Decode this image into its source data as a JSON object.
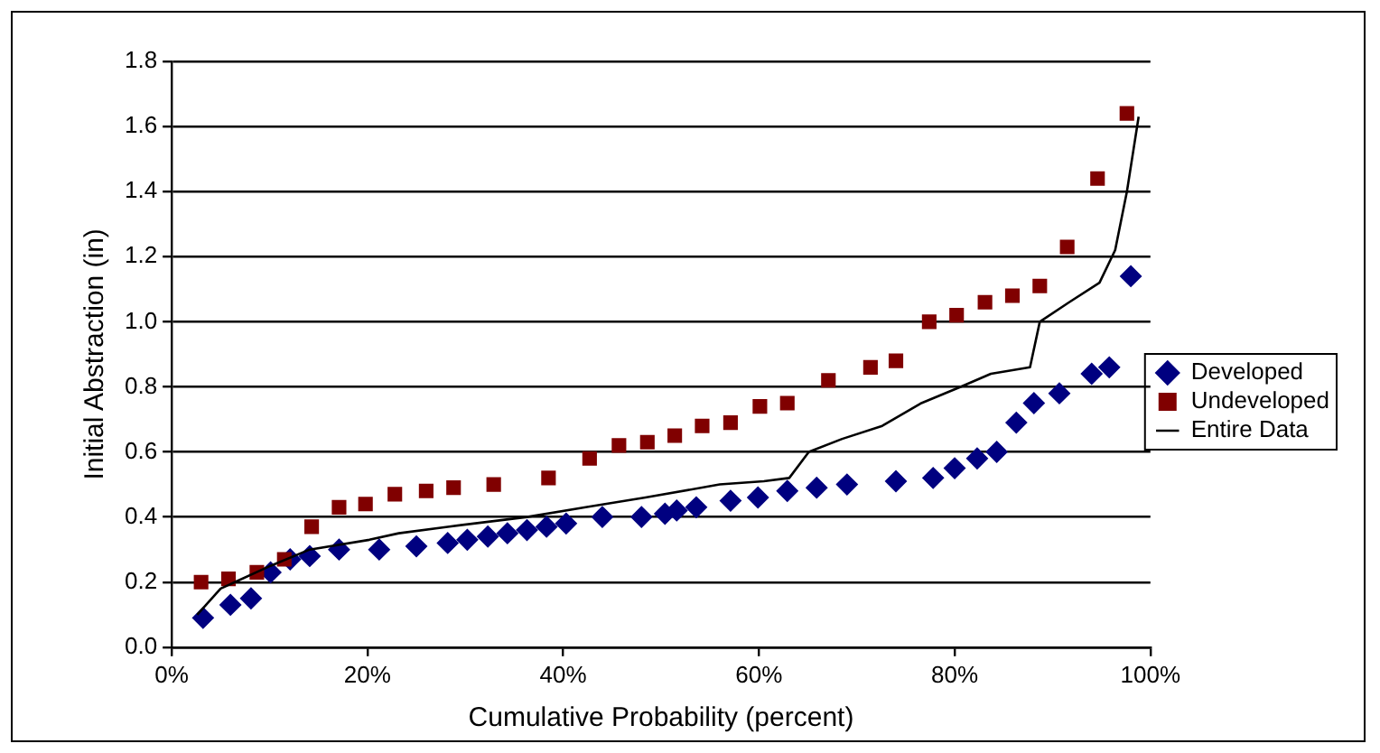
{
  "chart_data": {
    "type": "scatter",
    "xlabel": "Cumulative Probability (percent)",
    "ylabel": "Initial Abstraction (in)",
    "xlim": [
      0,
      100
    ],
    "xticks": [
      {
        "value": 0,
        "label": "0%"
      },
      {
        "value": 20,
        "label": "20%"
      },
      {
        "value": 40,
        "label": "40%"
      },
      {
        "value": 60,
        "label": "60%"
      },
      {
        "value": 80,
        "label": "80%"
      },
      {
        "value": 100,
        "label": "100%"
      }
    ],
    "ylim": [
      0,
      1.8
    ],
    "yticks": [
      {
        "value": 0,
        "label": "0.0"
      },
      {
        "value": 0.2,
        "label": "0.2"
      },
      {
        "value": 0.4,
        "label": "0.4"
      },
      {
        "value": 0.6,
        "label": "0.6"
      },
      {
        "value": 0.8,
        "label": "0.8"
      },
      {
        "value": 1,
        "label": "1.0"
      },
      {
        "value": 1.2,
        "label": "1.2"
      },
      {
        "value": 1.4,
        "label": "1.4"
      },
      {
        "value": 1.6,
        "label": "1.6"
      },
      {
        "value": 1.8,
        "label": "1.8"
      }
    ],
    "grid": "y",
    "legend": "right",
    "series": [
      {
        "name": "Developed",
        "type": "scatter",
        "marker": "diamond",
        "color": "#000080",
        "x": [
          3.2,
          6.0,
          8.1,
          10.1,
          12.1,
          14.1,
          17.1,
          21.2,
          25.0,
          28.2,
          30.2,
          32.3,
          34.3,
          36.3,
          38.3,
          40.3,
          44.0,
          48.0,
          50.4,
          51.6,
          53.6,
          57.1,
          59.9,
          62.9,
          65.9,
          69.0,
          74.0,
          77.8,
          80.0,
          82.3,
          84.3,
          86.3,
          88.1,
          90.7,
          94.0,
          95.8,
          98.0
        ],
        "values": [
          0.09,
          0.13,
          0.15,
          0.23,
          0.27,
          0.28,
          0.3,
          0.3,
          0.31,
          0.32,
          0.33,
          0.34,
          0.35,
          0.36,
          0.37,
          0.38,
          0.4,
          0.4,
          0.41,
          0.42,
          0.43,
          0.45,
          0.46,
          0.48,
          0.49,
          0.5,
          0.51,
          0.52,
          0.55,
          0.58,
          0.6,
          0.69,
          0.75,
          0.78,
          0.84,
          0.86,
          1.14
        ]
      },
      {
        "name": "Undeveloped",
        "type": "scatter",
        "marker": "square",
        "color": "#800000",
        "x": [
          3.0,
          5.8,
          8.7,
          11.5,
          14.3,
          17.1,
          19.8,
          22.8,
          26.0,
          28.8,
          32.9,
          38.5,
          42.7,
          45.7,
          48.6,
          51.4,
          54.2,
          57.1,
          60.1,
          62.9,
          67.1,
          71.4,
          74.0,
          77.4,
          80.2,
          83.1,
          85.9,
          88.7,
          91.5,
          94.6,
          97.6
        ],
        "values": [
          0.2,
          0.21,
          0.23,
          0.27,
          0.37,
          0.43,
          0.44,
          0.47,
          0.48,
          0.49,
          0.5,
          0.52,
          0.58,
          0.62,
          0.63,
          0.65,
          0.68,
          0.69,
          0.74,
          0.75,
          0.82,
          0.86,
          0.88,
          1.0,
          1.02,
          1.06,
          1.08,
          1.11,
          1.23,
          1.44,
          1.64
        ]
      },
      {
        "name": "Entire Data",
        "type": "line",
        "marker": "none",
        "color": "#000000",
        "x": [
          2.6,
          5.0,
          10.1,
          14.1,
          20.2,
          23.2,
          28.2,
          36.3,
          42.3,
          48.4,
          56.0,
          60.5,
          63.1,
          65.1,
          68.5,
          72.6,
          76.6,
          80.6,
          83.7,
          87.7,
          88.7,
          91.7,
          94.8,
          96.4,
          97.6,
          98.8
        ],
        "values": [
          0.1,
          0.18,
          0.25,
          0.3,
          0.33,
          0.35,
          0.37,
          0.4,
          0.43,
          0.46,
          0.5,
          0.51,
          0.52,
          0.6,
          0.64,
          0.68,
          0.75,
          0.8,
          0.84,
          0.86,
          1.0,
          1.06,
          1.12,
          1.22,
          1.4,
          1.63
        ]
      }
    ]
  }
}
